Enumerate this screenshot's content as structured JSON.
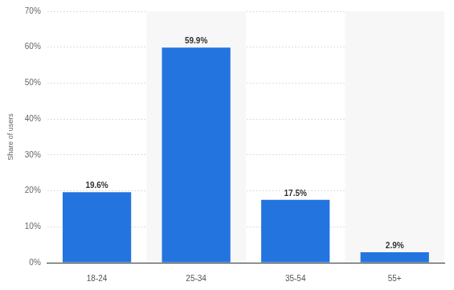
{
  "chart_data": {
    "type": "bar",
    "y_label": "Share of users",
    "categories": [
      "18-24",
      "25-34",
      "35-54",
      "55+"
    ],
    "values": [
      19.6,
      59.9,
      17.5,
      2.9
    ],
    "value_labels": [
      "19.6%",
      "59.9%",
      "17.5%",
      "2.9%"
    ],
    "color": "#2474e0",
    "ylim": [
      0,
      70
    ],
    "yticks": [
      {
        "value": 0,
        "label": "0%"
      },
      {
        "value": 10,
        "label": "10%"
      },
      {
        "value": 20,
        "label": "20%"
      },
      {
        "value": 30,
        "label": "30%"
      },
      {
        "value": 40,
        "label": "40%"
      },
      {
        "value": 50,
        "label": "50%"
      },
      {
        "value": 60,
        "label": "60%"
      },
      {
        "value": 70,
        "label": "70%"
      }
    ],
    "grid": true,
    "data_labels": true
  }
}
